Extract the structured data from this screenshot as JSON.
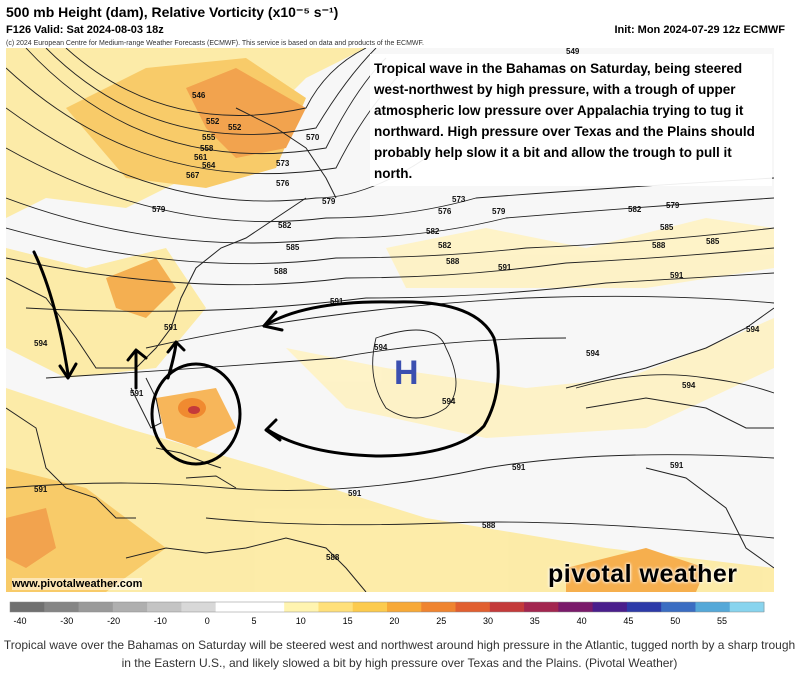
{
  "header": {
    "title": "500 mb Height (dam), Relative Vorticity (x10⁻⁵ s⁻¹)",
    "valid": "F126 Valid: Sat 2024-08-03 18z",
    "init": "Init: Mon 2024-07-29 12z ECMWF",
    "copyright": "(c) 2024 European Centre for Medium-range Weather Forecasts (ECMWF). This service is based on data and products of the ECMWF."
  },
  "annotation": "Tropical wave in the Bahamas on Saturday, being steered west-northwest by high pressure, with a trough of upper atmospheric low pressure over Appalachia trying to tug it northward. High pressure over Texas and the Plains should probably help slow it a bit and allow the trough to pull it north.",
  "high_marker": "H",
  "watermark": {
    "website": "www.pivotalweather.com",
    "brand": "pivotal weather"
  },
  "colorbar": {
    "ticks": [
      "-40",
      "-30",
      "-20",
      "-10",
      "0",
      "5",
      "10",
      "15",
      "20",
      "25",
      "30",
      "35",
      "40",
      "45",
      "50",
      "55"
    ],
    "colors": [
      "#707070",
      "#858585",
      "#9a9a9a",
      "#afafaf",
      "#c4c4c4",
      "#d8d8d8",
      "#ffffff",
      "#ffffff",
      "#fff4b0",
      "#ffe07a",
      "#fccb4e",
      "#f7a938",
      "#ef8430",
      "#e15f30",
      "#c43a3a",
      "#a3264f",
      "#7a1a6a",
      "#4a1e8c",
      "#2d3aa8",
      "#3b6dc2",
      "#55a8d8",
      "#88d4ee"
    ]
  },
  "contour_labels": [
    {
      "id": "546",
      "text": "546"
    },
    {
      "id": "549",
      "text": "549"
    },
    {
      "id": "552a",
      "text": "552"
    },
    {
      "id": "555",
      "text": "555"
    },
    {
      "id": "558",
      "text": "558"
    },
    {
      "id": "561",
      "text": "561"
    },
    {
      "id": "564",
      "text": "564"
    },
    {
      "id": "567",
      "text": "567"
    },
    {
      "id": "570",
      "text": "570"
    },
    {
      "id": "573a",
      "text": "573"
    },
    {
      "id": "573b",
      "text": "573"
    },
    {
      "id": "576a",
      "text": "576"
    },
    {
      "id": "576b",
      "text": "576"
    },
    {
      "id": "579a",
      "text": "579"
    },
    {
      "id": "579b",
      "text": "579"
    },
    {
      "id": "579c",
      "text": "579"
    },
    {
      "id": "579d",
      "text": "579"
    },
    {
      "id": "582a",
      "text": "582"
    },
    {
      "id": "582b",
      "text": "582"
    },
    {
      "id": "582c",
      "text": "582"
    },
    {
      "id": "582d",
      "text": "582"
    },
    {
      "id": "585a",
      "text": "585"
    },
    {
      "id": "585b",
      "text": "585"
    },
    {
      "id": "585c",
      "text": "585"
    },
    {
      "id": "588a",
      "text": "588"
    },
    {
      "id": "588b",
      "text": "588"
    },
    {
      "id": "588c",
      "text": "588"
    },
    {
      "id": "588d",
      "text": "588"
    },
    {
      "id": "588e",
      "text": "588"
    },
    {
      "id": "591a",
      "text": "591"
    },
    {
      "id": "591b",
      "text": "591"
    },
    {
      "id": "591c",
      "text": "591"
    },
    {
      "id": "591d",
      "text": "591"
    },
    {
      "id": "591e",
      "text": "591"
    },
    {
      "id": "591f",
      "text": "591"
    },
    {
      "id": "591g",
      "text": "591"
    },
    {
      "id": "591h",
      "text": "591"
    },
    {
      "id": "591i",
      "text": "591"
    },
    {
      "id": "594a",
      "text": "594"
    },
    {
      "id": "594b",
      "text": "594"
    },
    {
      "id": "594c",
      "text": "594"
    },
    {
      "id": "594d",
      "text": "594"
    },
    {
      "id": "594e",
      "text": "594"
    },
    {
      "id": "594f",
      "text": "594"
    },
    {
      "id": "552b",
      "text": "552"
    }
  ],
  "caption": "Tropical wave over the Bahamas on Saturday will be steered west and northwest around high pressure in the Atlantic, tugged north by a sharp trough in the Eastern U.S., and likely slowed a bit by high pressure over Texas and the Plains. (Pivotal Weather)"
}
